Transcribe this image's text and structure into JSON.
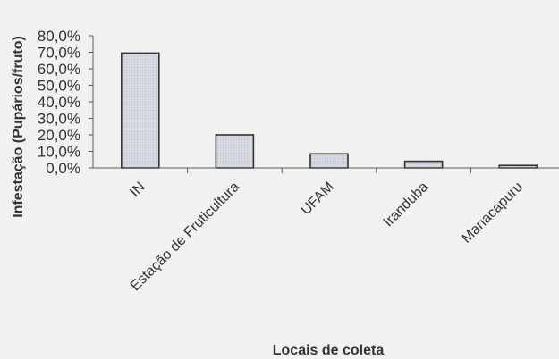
{
  "chart_data": {
    "type": "bar",
    "categories": [
      "IN",
      "Estação de Fruticultura",
      "UFAM",
      "Iranduba",
      "Manacapuru"
    ],
    "values": [
      69.5,
      20.0,
      8.5,
      4.0,
      1.5
    ],
    "ylabel": "Infestação (Pupários/fruto)",
    "xlabel": "Locais de coleta",
    "ylim": [
      0,
      80
    ],
    "yticks": [
      "0,0%",
      "10,0%",
      "20,0%",
      "30,0%",
      "40,0%",
      "50,0%",
      "60,0%",
      "70,0%",
      "80,0%"
    ],
    "grid": false,
    "legend": "none",
    "colors": {
      "bar_fill": "#d7d9e0",
      "bar_stroke": "#333333",
      "axis": "#5a5a5a",
      "text": "#333333",
      "background": "#f1f1f0"
    }
  }
}
